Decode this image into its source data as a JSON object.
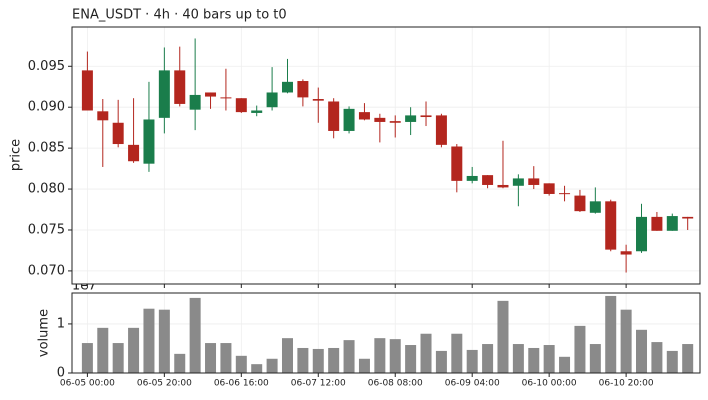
{
  "chart_data": [
    {
      "type": "candlestick",
      "title": "ENA_USDT  ·  4h  ·  40 bars up to t0",
      "ylabel": "price",
      "open": [
        0.0945,
        0.0895,
        0.0881,
        0.0854,
        0.0831,
        0.0887,
        0.0945,
        0.0897,
        0.0918,
        0.0912,
        0.0911,
        0.0893,
        0.09,
        0.0918,
        0.0932,
        0.091,
        0.0907,
        0.0871,
        0.0894,
        0.0887,
        0.0883,
        0.0882,
        0.089,
        0.089,
        0.0852,
        0.081,
        0.0817,
        0.0805,
        0.0804,
        0.0813,
        0.0807,
        0.0795,
        0.0792,
        0.0771,
        0.0785,
        0.0724,
        0.0724,
        0.0766,
        0.0749,
        0.0766
      ],
      "high": [
        0.0968,
        0.091,
        0.0909,
        0.0911,
        0.0931,
        0.0973,
        0.0974,
        0.0984,
        0.0918,
        0.0947,
        0.0911,
        0.0902,
        0.0949,
        0.0959,
        0.0934,
        0.0924,
        0.0911,
        0.0901,
        0.0905,
        0.0892,
        0.089,
        0.09,
        0.0907,
        0.0892,
        0.0855,
        0.0827,
        0.0817,
        0.0859,
        0.0818,
        0.0828,
        0.0807,
        0.0804,
        0.0799,
        0.0802,
        0.0787,
        0.0732,
        0.0782,
        0.0772,
        0.077,
        0.0766
      ],
      "low": [
        0.0896,
        0.0827,
        0.0851,
        0.0832,
        0.0821,
        0.0868,
        0.0901,
        0.0872,
        0.0898,
        0.0896,
        0.0893,
        0.0889,
        0.0896,
        0.0917,
        0.0901,
        0.0881,
        0.0862,
        0.0868,
        0.0884,
        0.0857,
        0.0863,
        0.0866,
        0.0877,
        0.0851,
        0.0796,
        0.0807,
        0.0801,
        0.0801,
        0.0779,
        0.08,
        0.0792,
        0.0785,
        0.0772,
        0.077,
        0.0724,
        0.0698,
        0.0722,
        0.0749,
        0.0749,
        0.075
      ],
      "close": [
        0.0896,
        0.0884,
        0.0855,
        0.0834,
        0.0885,
        0.0945,
        0.0904,
        0.0915,
        0.0913,
        0.0911,
        0.0894,
        0.0896,
        0.0918,
        0.0931,
        0.0912,
        0.0908,
        0.0871,
        0.0898,
        0.0885,
        0.0882,
        0.0881,
        0.089,
        0.0888,
        0.0854,
        0.081,
        0.0816,
        0.0805,
        0.0802,
        0.0813,
        0.0805,
        0.0794,
        0.0794,
        0.0773,
        0.0785,
        0.0726,
        0.072,
        0.0766,
        0.0749,
        0.0767,
        0.0764
      ],
      "up_color": "#1a7d4b",
      "down_color": "#b3261e",
      "ylim": [
        0.0684,
        0.0998
      ],
      "yticks": [
        {
          "value": 0.07,
          "label": "0.070"
        },
        0.075,
        {
          "value": 0.08,
          "label": "0.080"
        },
        0.085,
        {
          "value": 0.09,
          "label": "0.090"
        },
        0.095
      ],
      "grid": true
    },
    {
      "type": "bar",
      "ylabel": "volume",
      "offset_label": "1e7",
      "categories": [
        "06-05 00:00",
        null,
        null,
        null,
        null,
        "06-05 20:00",
        null,
        null,
        null,
        null,
        "06-06 16:00",
        null,
        null,
        null,
        null,
        "06-07 12:00",
        null,
        null,
        null,
        null,
        "06-08 08:00",
        null,
        null,
        null,
        null,
        "06-09 04:00",
        null,
        null,
        null,
        null,
        "06-10 00:00",
        null,
        null,
        null,
        null,
        "06-10 20:00",
        null,
        null,
        null,
        null
      ],
      "values": [
        6100000,
        9200000,
        6100000,
        9200000,
        13100000,
        12900000,
        3900000,
        15300000,
        6100000,
        6100000,
        3500000,
        1800000,
        2900000,
        7100000,
        5100000,
        4900000,
        5100000,
        6700000,
        2900000,
        7100000,
        6900000,
        5700000,
        8000000,
        4500000,
        8000000,
        4700000,
        5900000,
        14700000,
        5900000,
        5100000,
        5700000,
        3300000,
        9600000,
        5900000,
        15700000,
        12900000,
        8800000,
        6300000,
        4500000,
        5900000
      ],
      "color": "#8a8a8a",
      "ylim": [
        0,
        16300000
      ],
      "yticks": [
        0,
        {
          "value": 10000000,
          "label": "1"
        }
      ],
      "grid": true
    }
  ]
}
